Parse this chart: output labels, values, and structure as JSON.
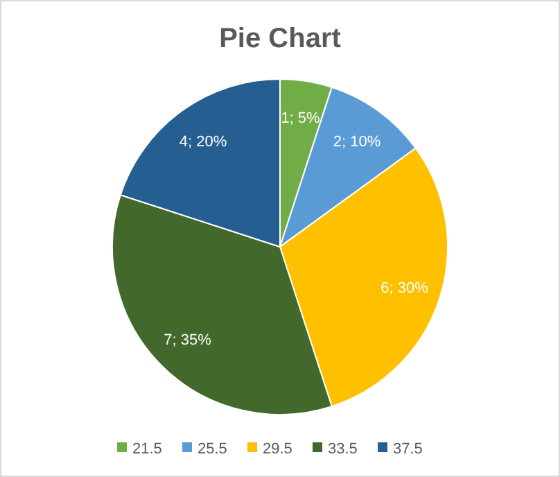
{
  "chart_data": {
    "type": "pie",
    "title": "Pie Chart",
    "categories": [
      "21.5",
      "25.5",
      "29.5",
      "33.5",
      "37.5"
    ],
    "values": [
      1,
      2,
      6,
      7,
      4
    ],
    "colors": [
      "#70ad47",
      "#5b9bd5",
      "#ffc000",
      "#43682b",
      "#255e91"
    ],
    "value_labels": [
      "1; 5%",
      "2; 10%",
      "6; 30%",
      "7; 35%",
      "4; 20%"
    ],
    "legend": "bottom"
  }
}
